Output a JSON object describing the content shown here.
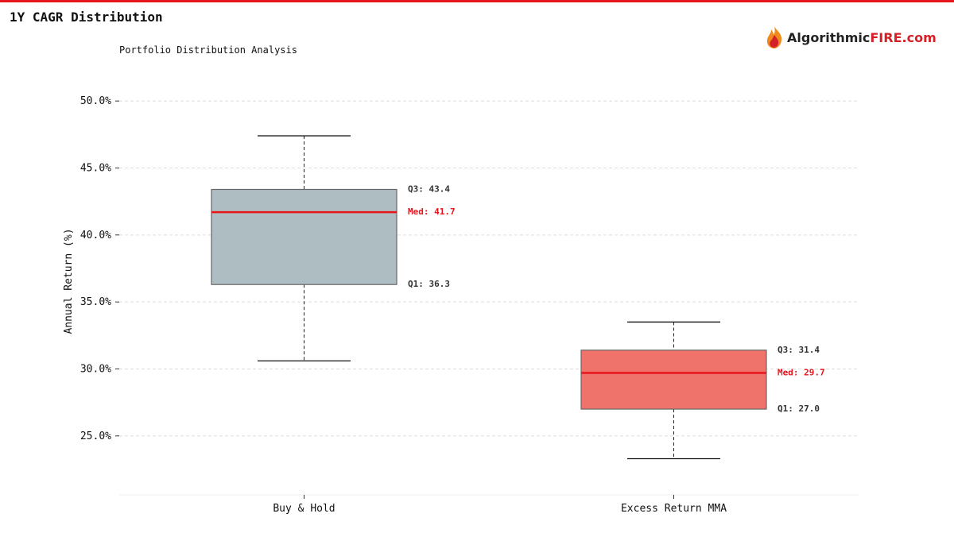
{
  "header": {
    "title": "1Y CAGR Distribution",
    "subtitle": "Portfolio Distribution Analysis"
  },
  "logo": {
    "text_main": "Algorithmic",
    "text_accent": "FIRE.com",
    "icon": "flame-icon"
  },
  "colors": {
    "accent": "#e8141c",
    "median": "#e8141c",
    "buy_hold_box": "#aab9bf",
    "mma_box": "#ee6b63"
  },
  "chart_data": {
    "type": "box",
    "title": "1Y CAGR Distribution",
    "subtitle": "Portfolio Distribution Analysis",
    "ylabel": "Annual Return (%)",
    "xlabel": "",
    "ylim": [
      20.6,
      52.5
    ],
    "yticks": [
      25,
      30,
      35,
      40,
      45,
      50
    ],
    "ytick_labels": [
      "25.0%",
      "30.0%",
      "35.0%",
      "40.0%",
      "45.0%",
      "50.0%"
    ],
    "grid": true,
    "categories": [
      "Buy & Hold",
      "Excess Return MMA"
    ],
    "boxes": [
      {
        "category": "Buy & Hold",
        "whisker_low": 30.6,
        "q1": 36.3,
        "median": 41.7,
        "q3": 43.4,
        "whisker_high": 47.4,
        "color": "#aab9bf",
        "labels": {
          "q3": "Q3: 43.4",
          "median": "Med: 41.7",
          "q1": "Q1: 36.3"
        }
      },
      {
        "category": "Excess Return MMA",
        "whisker_low": 23.3,
        "q1": 27.0,
        "median": 29.7,
        "q3": 31.4,
        "whisker_high": 33.5,
        "color": "#ee6b63",
        "labels": {
          "q3": "Q3: 31.4",
          "median": "Med: 29.7",
          "q1": "Q1: 27.0"
        }
      }
    ]
  }
}
